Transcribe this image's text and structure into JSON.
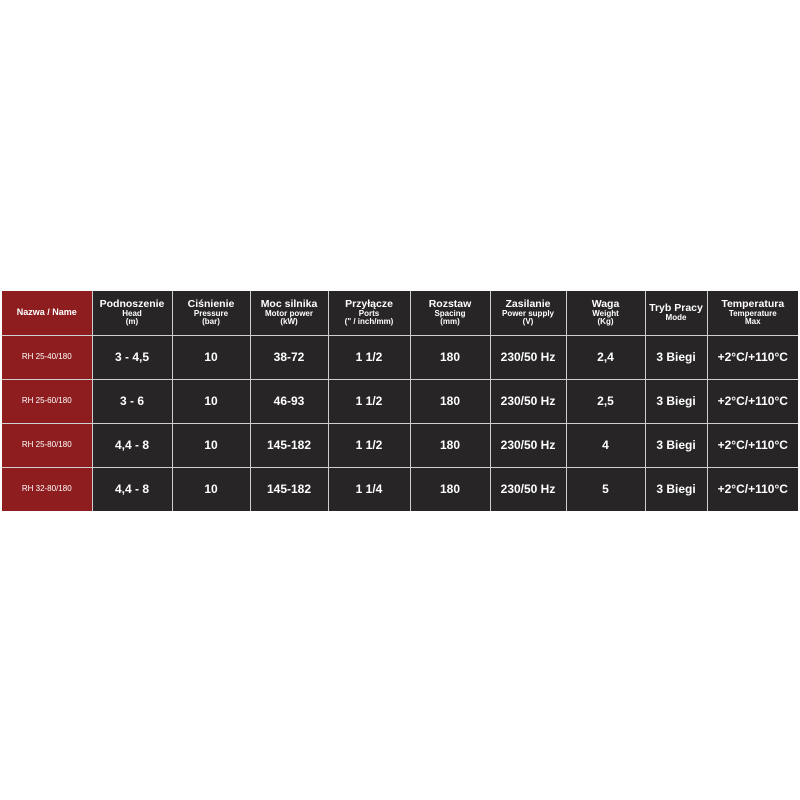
{
  "table": {
    "name_header": "Nazwa / Name",
    "columns": [
      {
        "title": "Podnoszenie",
        "sub": [
          "Head",
          "(m)"
        ]
      },
      {
        "title": "Ciśnienie",
        "sub": [
          "Pressure",
          "(bar)"
        ]
      },
      {
        "title": "Moc silnika",
        "sub": [
          "Motor power",
          "(kW)"
        ]
      },
      {
        "title": "Przyłącze",
        "sub": [
          "Ports",
          "(\" / inch/mm)"
        ]
      },
      {
        "title": "Rozstaw",
        "sub": [
          "Spacing",
          "(mm)"
        ]
      },
      {
        "title": "Zasilanie",
        "sub": [
          "Power supply",
          "(V)"
        ]
      },
      {
        "title": "Waga",
        "sub": [
          "Weight",
          "(Kg)"
        ]
      },
      {
        "title": "Tryb Pracy",
        "sub": [
          "Mode",
          ""
        ]
      },
      {
        "title": "Temperatura",
        "sub": [
          "Temperature",
          "Max"
        ]
      }
    ],
    "rows": [
      {
        "name": "RH 25-40/180",
        "values": [
          "3 - 4,5",
          "10",
          "38-72",
          "1 1/2",
          "180",
          "230/50 Hz",
          "2,4",
          "3 Biegi",
          "+2°C/+110°C"
        ]
      },
      {
        "name": "RH 25-60/180",
        "values": [
          "3 - 6",
          "10",
          "46-93",
          "1 1/2",
          "180",
          "230/50 Hz",
          "2,5",
          "3 Biegi",
          "+2°C/+110°C"
        ]
      },
      {
        "name": "RH 25-80/180",
        "values": [
          "4,4 - 8",
          "10",
          "145-182",
          "1 1/2",
          "180",
          "230/50 Hz",
          "4",
          "3 Biegi",
          "+2°C/+110°C"
        ]
      },
      {
        "name": "RH 32-80/180",
        "values": [
          "4,4 - 8",
          "10",
          "145-182",
          "1 1/4",
          "180",
          "230/50 Hz",
          "5",
          "3 Biegi",
          "+2°C/+110°C"
        ]
      }
    ]
  },
  "colors": {
    "name_column": "#8e1d1f",
    "cells": "#272525",
    "grid": "#d0d0d0",
    "text": "#ffffff"
  }
}
